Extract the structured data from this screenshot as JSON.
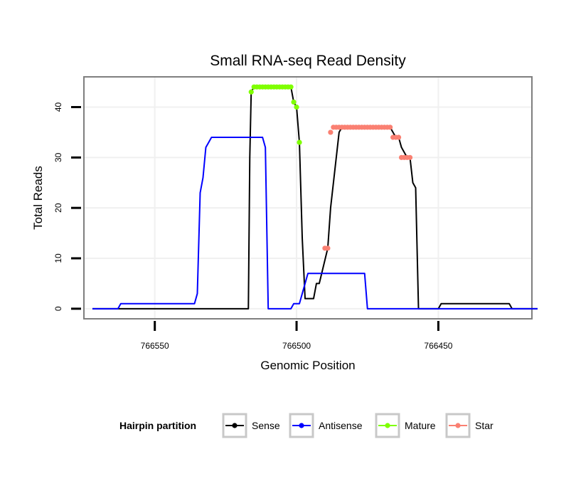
{
  "chart_data": {
    "type": "line",
    "title": "Small RNA-seq Read Density",
    "xlabel": "Genomic Position",
    "ylabel": "Total Reads",
    "x_reversed": true,
    "xlim": [
      766575,
      766417
    ],
    "ylim": [
      -2,
      46
    ],
    "x_ticks": [
      766550,
      766500,
      766450
    ],
    "y_ticks": [
      0,
      10,
      20,
      30,
      40
    ],
    "grid": true,
    "legend_position": "bottom",
    "legend": {
      "title": "Hairpin partition",
      "entries": [
        "Sense",
        "Antisense",
        "Mature",
        "Star"
      ]
    },
    "colors": {
      "Sense": "#000000",
      "Antisense": "#0000ff",
      "Mature": "#7fff00",
      "Star": "#fa8072"
    },
    "series": [
      {
        "name": "Sense",
        "kind": "line",
        "x": [
          766572,
          766517,
          766516.5,
          766516,
          766515,
          766502,
          766501,
          766500,
          766499,
          766498,
          766497,
          766496,
          766495,
          766494,
          766493,
          766492,
          766489,
          766488,
          766485,
          766484,
          766482,
          766481,
          766480,
          766478,
          766467,
          766466,
          766465,
          766464,
          766463,
          766461,
          766460,
          766459,
          766458,
          766457,
          766455,
          766450,
          766449,
          766447,
          766425,
          766424,
          766415
        ],
        "y": [
          0,
          0,
          30,
          43,
          44,
          44,
          41,
          40,
          33,
          14,
          2,
          2,
          2,
          2,
          5,
          5,
          12,
          20,
          35,
          36,
          36,
          36,
          36,
          36,
          36,
          35,
          34,
          34,
          32,
          30,
          30,
          25,
          24,
          0,
          0,
          0,
          1,
          1,
          1,
          0,
          0
        ]
      },
      {
        "name": "Antisense",
        "kind": "line",
        "x": [
          766572,
          766563,
          766562,
          766536,
          766535,
          766534,
          766533,
          766532,
          766531,
          766530,
          766512,
          766511,
          766510,
          766502,
          766501,
          766499,
          766498,
          766497,
          766496,
          766493,
          766491,
          766490,
          766489,
          766488,
          766476,
          766475,
          766415
        ],
        "y": [
          0,
          0,
          1,
          1,
          3,
          23,
          26,
          32,
          33,
          34,
          34,
          32,
          0,
          0,
          1,
          1,
          3,
          5,
          7,
          7,
          7,
          7,
          7,
          7,
          7,
          0,
          0
        ]
      },
      {
        "name": "Mature",
        "kind": "points",
        "x": [
          766516,
          766515,
          766514,
          766513,
          766512,
          766511,
          766510,
          766509,
          766508,
          766507,
          766506,
          766505,
          766504,
          766503,
          766502,
          766501,
          766500,
          766499
        ],
        "y": [
          43,
          44,
          44,
          44,
          44,
          44,
          44,
          44,
          44,
          44,
          44,
          44,
          44,
          44,
          44,
          41,
          40,
          33
        ]
      },
      {
        "name": "Star",
        "kind": "points",
        "x": [
          766490,
          766489,
          766488,
          766487,
          766486,
          766485,
          766484,
          766483,
          766482,
          766481,
          766480,
          766479,
          766478,
          766477,
          766476,
          766475,
          766474,
          766473,
          766472,
          766471,
          766470,
          766469,
          766468,
          766467,
          766466,
          766465,
          766464,
          766463,
          766462,
          766461,
          766460
        ],
        "y": [
          12,
          12,
          35,
          36,
          36,
          36,
          36,
          36,
          36,
          36,
          36,
          36,
          36,
          36,
          36,
          36,
          36,
          36,
          36,
          36,
          36,
          36,
          36,
          36,
          34,
          34,
          34,
          30,
          30,
          30,
          30
        ]
      }
    ]
  }
}
